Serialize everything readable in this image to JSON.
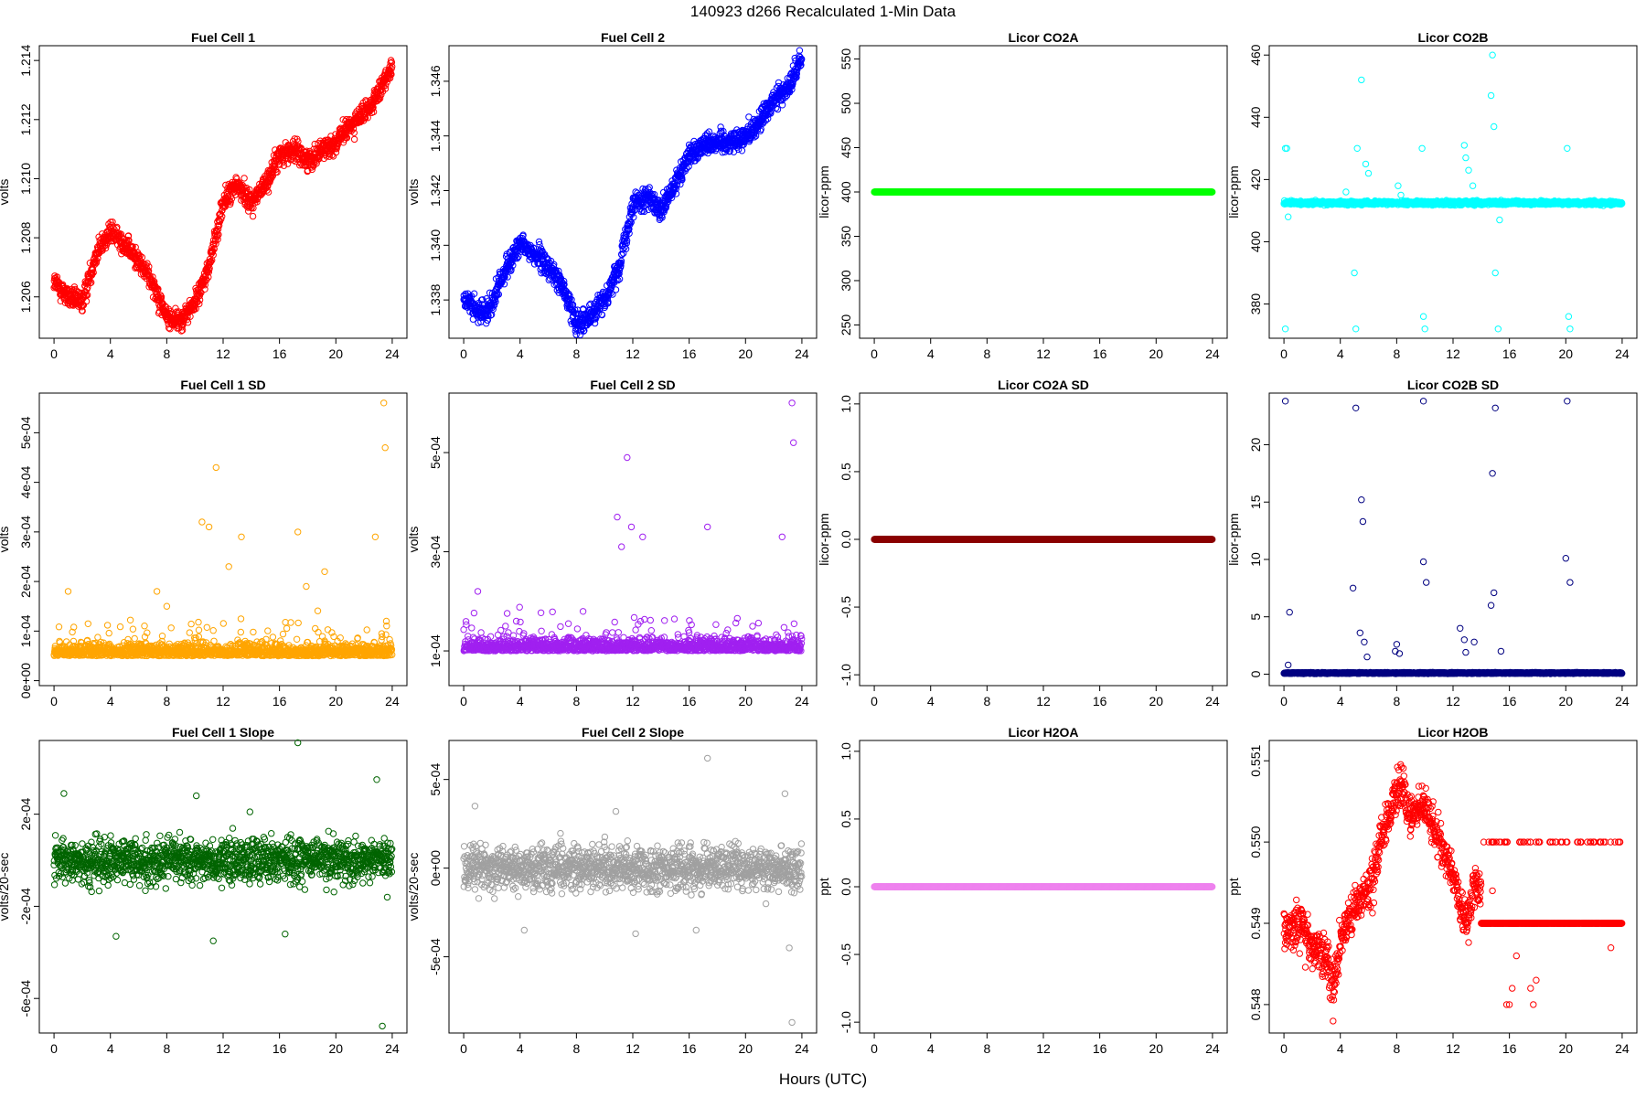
{
  "figure": {
    "suptitle": "140923   d266   Recalculated 1-Min Data",
    "xlabel": "Hours (UTC)"
  },
  "chart_data": [
    {
      "type": "scatter",
      "title": "Fuel Cell 1",
      "ylabel": "volts",
      "color": "#ff0000",
      "x_ticks": [
        "0",
        "4",
        "8",
        "12",
        "16",
        "20",
        "24"
      ],
      "xlim": [
        0,
        24
      ],
      "y_ticks": [
        "1.206",
        "1.208",
        "1.210",
        "1.212",
        "1.214"
      ],
      "ylim": [
        1.2046,
        1.2145
      ],
      "series": {
        "kind": "walk",
        "x": [
          0,
          1,
          2,
          3,
          4,
          5,
          6,
          7,
          8,
          9,
          10,
          11,
          12,
          13,
          14,
          15,
          16,
          17,
          18,
          19,
          20,
          21,
          22,
          23,
          24
        ],
        "y": [
          1.2065,
          1.206,
          1.2058,
          1.2075,
          1.2082,
          1.2078,
          1.2072,
          1.2065,
          1.2053,
          1.2052,
          1.2058,
          1.207,
          1.2092,
          1.2098,
          1.2092,
          1.2098,
          1.2108,
          1.211,
          1.2106,
          1.211,
          1.2112,
          1.2118,
          1.2122,
          1.2128,
          1.2139
        ],
        "noise": 0.00035
      }
    },
    {
      "type": "scatter",
      "title": "Fuel Cell 2",
      "ylabel": "volts",
      "color": "#0000ff",
      "x_ticks": [
        "0",
        "4",
        "8",
        "12",
        "16",
        "20",
        "24"
      ],
      "xlim": [
        0,
        24
      ],
      "y_ticks": [
        "1.338",
        "1.340",
        "1.342",
        "1.344",
        "1.346"
      ],
      "ylim": [
        1.3366,
        1.3473
      ],
      "series": {
        "kind": "walk",
        "x": [
          0,
          1,
          2,
          3,
          4,
          5,
          6,
          7,
          8,
          9,
          10,
          11,
          12,
          13,
          14,
          15,
          16,
          17,
          18,
          19,
          20,
          21,
          22,
          23,
          24
        ],
        "y": [
          1.3381,
          1.3375,
          1.3378,
          1.3392,
          1.34,
          1.3397,
          1.3392,
          1.3385,
          1.3372,
          1.3374,
          1.338,
          1.3392,
          1.3415,
          1.3418,
          1.3412,
          1.3422,
          1.3433,
          1.3437,
          1.3438,
          1.3438,
          1.344,
          1.3445,
          1.3453,
          1.3458,
          1.3468
        ],
        "noise": 0.0004
      }
    },
    {
      "type": "scatter",
      "title": "Licor CO2A",
      "ylabel": "licor-ppm",
      "color": "#00ff00",
      "x_ticks": [
        "0",
        "4",
        "8",
        "12",
        "16",
        "20",
        "24"
      ],
      "xlim": [
        0,
        24
      ],
      "y_ticks": [
        "250",
        "300",
        "350",
        "400",
        "450",
        "500",
        "550"
      ],
      "ylim": [
        235,
        565
      ],
      "series": {
        "kind": "const",
        "value": 400
      }
    },
    {
      "type": "scatter",
      "title": "Licor CO2B",
      "ylabel": "licor-ppm",
      "color": "#00ffff",
      "x_ticks": [
        "0",
        "4",
        "8",
        "12",
        "16",
        "20",
        "24"
      ],
      "xlim": [
        0,
        24
      ],
      "y_ticks": [
        "380",
        "400",
        "420",
        "440",
        "460"
      ],
      "ylim": [
        369,
        463
      ],
      "series": {
        "kind": "noisy",
        "base": 412.5,
        "noise": 0.6,
        "outliers": [
          [
            0.1,
            430
          ],
          [
            0.2,
            430
          ],
          [
            0.1,
            372
          ],
          [
            0.3,
            408
          ],
          [
            5.2,
            430
          ],
          [
            5.5,
            452
          ],
          [
            5.1,
            372
          ],
          [
            5.0,
            390
          ],
          [
            9.8,
            430
          ],
          [
            9.9,
            376
          ],
          [
            10.0,
            372
          ],
          [
            14.8,
            460
          ],
          [
            14.7,
            447
          ],
          [
            14.9,
            437
          ],
          [
            15.0,
            390
          ],
          [
            15.2,
            372
          ],
          [
            15.3,
            407
          ],
          [
            20.1,
            430
          ],
          [
            20.2,
            376
          ],
          [
            20.3,
            372
          ],
          [
            12.8,
            431
          ],
          [
            12.9,
            427
          ],
          [
            13.1,
            423
          ],
          [
            13.4,
            418
          ],
          [
            6.0,
            422
          ],
          [
            5.8,
            425
          ],
          [
            8.1,
            418
          ],
          [
            8.3,
            415
          ],
          [
            4.4,
            416
          ]
        ]
      }
    },
    {
      "type": "scatter",
      "title": "Fuel Cell 1 SD",
      "ylabel": "volts",
      "color": "#ffa500",
      "x_ticks": [
        "0",
        "4",
        "8",
        "12",
        "16",
        "20",
        "24"
      ],
      "xlim": [
        0,
        24
      ],
      "y_ticks": [
        "0e+00",
        "1e-04",
        "2e-04",
        "3e-04",
        "4e-04",
        "5e-04"
      ],
      "ylim": [
        -1e-05,
        0.00058
      ],
      "series": {
        "kind": "sd",
        "base": 5e-05,
        "noise": 3e-05,
        "outliers": [
          [
            11.5,
            0.00043
          ],
          [
            10.5,
            0.00032
          ],
          [
            11.0,
            0.00031
          ],
          [
            17.3,
            0.0003
          ],
          [
            13.3,
            0.00029
          ],
          [
            12.4,
            0.00023
          ],
          [
            22.8,
            0.00029
          ],
          [
            23.4,
            0.00056
          ],
          [
            23.5,
            0.00047
          ],
          [
            1.0,
            0.00018
          ],
          [
            7.3,
            0.00018
          ],
          [
            8.0,
            0.00015
          ],
          [
            19.2,
            0.00022
          ],
          [
            17.9,
            0.00019
          ]
        ]
      }
    },
    {
      "type": "scatter",
      "title": "Fuel Cell 2 SD",
      "ylabel": "volts",
      "color": "#a020f0",
      "x_ticks": [
        "0",
        "4",
        "8",
        "12",
        "16",
        "20",
        "24"
      ],
      "xlim": [
        0,
        24
      ],
      "y_ticks": [
        "1e-04",
        "3e-04",
        "5e-04"
      ],
      "ylim": [
        3e-05,
        0.00062
      ],
      "series": {
        "kind": "sd",
        "base": 0.0001,
        "noise": 3e-05,
        "outliers": [
          [
            11.6,
            0.00049
          ],
          [
            10.9,
            0.00037
          ],
          [
            11.9,
            0.00035
          ],
          [
            12.7,
            0.00033
          ],
          [
            17.3,
            0.00035
          ],
          [
            22.6,
            0.00033
          ],
          [
            23.3,
            0.0006
          ],
          [
            23.4,
            0.00052
          ],
          [
            11.2,
            0.00031
          ],
          [
            1.0,
            0.00022
          ]
        ]
      }
    },
    {
      "type": "scatter",
      "title": "Licor CO2A SD",
      "ylabel": "licor-ppm",
      "color": "#8b0000",
      "x_ticks": [
        "0",
        "4",
        "8",
        "12",
        "16",
        "20",
        "24"
      ],
      "xlim": [
        0,
        24
      ],
      "y_ticks": [
        "-1.0",
        "-0.5",
        "0.0",
        "0.5",
        "1.0"
      ],
      "ylim": [
        -1.08,
        1.08
      ],
      "series": {
        "kind": "const",
        "value": 0
      }
    },
    {
      "type": "scatter",
      "title": "Licor CO2B SD",
      "ylabel": "licor-ppm",
      "color": "#000080",
      "x_ticks": [
        "0",
        "4",
        "8",
        "12",
        "16",
        "20",
        "24"
      ],
      "xlim": [
        0,
        24
      ],
      "y_ticks": [
        "0",
        "5",
        "10",
        "15",
        "20"
      ],
      "ylim": [
        -1,
        24.5
      ],
      "series": {
        "kind": "noisy",
        "base": 0.1,
        "noise": 0.05,
        "outliers": [
          [
            0.1,
            23.8
          ],
          [
            0.4,
            5.4
          ],
          [
            5.1,
            23.2
          ],
          [
            5.5,
            15.2
          ],
          [
            5.6,
            13.3
          ],
          [
            4.9,
            7.5
          ],
          [
            9.9,
            23.8
          ],
          [
            9.9,
            9.8
          ],
          [
            10.1,
            8.0
          ],
          [
            14.8,
            17.5
          ],
          [
            14.9,
            7.1
          ],
          [
            15.0,
            23.2
          ],
          [
            14.7,
            6.0
          ],
          [
            20.1,
            23.8
          ],
          [
            20.0,
            10.1
          ],
          [
            20.3,
            8.0
          ],
          [
            12.5,
            4.0
          ],
          [
            5.4,
            3.6
          ],
          [
            8.0,
            2.6
          ],
          [
            13.5,
            2.8
          ],
          [
            15.4,
            2.0
          ],
          [
            5.7,
            2.8
          ],
          [
            12.8,
            3.0
          ],
          [
            0.3,
            0.8
          ],
          [
            7.9,
            2.0
          ],
          [
            5.9,
            1.5
          ],
          [
            8.2,
            1.8
          ],
          [
            12.9,
            1.9
          ]
        ]
      }
    },
    {
      "type": "scatter",
      "title": "Fuel Cell 1 Slope",
      "ylabel": "volts/20-sec",
      "color": "#006400",
      "x_ticks": [
        "0",
        "4",
        "8",
        "12",
        "16",
        "20",
        "24"
      ],
      "xlim": [
        0,
        24
      ],
      "y_ticks": [
        "-6e-04",
        "-2e-04",
        "2e-04"
      ],
      "ylim": [
        -0.00075,
        0.00052
      ],
      "series": {
        "kind": "noisy",
        "base": 0,
        "noise": 9e-05,
        "outliers": [
          [
            17.3,
            0.00051
          ],
          [
            23.3,
            -0.00072
          ],
          [
            22.9,
            0.00035
          ],
          [
            4.4,
            -0.00033
          ],
          [
            11.3,
            -0.00035
          ],
          [
            16.4,
            -0.00032
          ],
          [
            0.7,
            0.00029
          ],
          [
            10.1,
            0.00028
          ],
          [
            13.9,
            0.00021
          ]
        ]
      }
    },
    {
      "type": "scatter",
      "title": "Fuel Cell 2 Slope",
      "ylabel": "volts/20-sec",
      "color": "#a0a0a0",
      "x_ticks": [
        "0",
        "4",
        "8",
        "12",
        "16",
        "20",
        "24"
      ],
      "xlim": [
        0,
        24
      ],
      "y_ticks": [
        "-5e-04",
        "0e+00",
        "5e-04"
      ],
      "ylim": [
        -0.00093,
        0.00072
      ],
      "series": {
        "kind": "noisy",
        "base": 0,
        "noise": 0.00012,
        "outliers": [
          [
            17.3,
            0.00062
          ],
          [
            23.3,
            -0.00087
          ],
          [
            22.8,
            0.00042
          ],
          [
            23.1,
            -0.00045
          ],
          [
            4.3,
            -0.00035
          ],
          [
            12.2,
            -0.00037
          ],
          [
            10.8,
            0.00032
          ],
          [
            0.8,
            0.00035
          ],
          [
            16.5,
            -0.00035
          ]
        ]
      }
    },
    {
      "type": "scatter",
      "title": "Licor H2OA",
      "ylabel": "ppt",
      "color": "#ee82ee",
      "x_ticks": [
        "0",
        "4",
        "8",
        "12",
        "16",
        "20",
        "24"
      ],
      "xlim": [
        0,
        24
      ],
      "y_ticks": [
        "-1.0",
        "-0.5",
        "0.0",
        "0.5",
        "1.0"
      ],
      "ylim": [
        -1.08,
        1.08
      ],
      "series": {
        "kind": "const",
        "value": 0
      }
    },
    {
      "type": "scatter",
      "title": "Licor H2OB",
      "ylabel": "ppt",
      "color": "#ff0000",
      "x_ticks": [
        "0",
        "4",
        "8",
        "12",
        "16",
        "20",
        "24"
      ],
      "xlim": [
        0,
        24
      ],
      "y_ticks": [
        "0.548",
        "0.549",
        "0.550",
        "0.551"
      ],
      "ylim": [
        0.54765,
        0.55125
      ],
      "series": {
        "kind": "walk",
        "x": [
          0,
          1,
          2,
          3,
          3.5,
          4,
          5,
          6,
          7,
          8,
          8.3,
          9,
          10,
          11,
          12,
          12.5,
          13,
          13.5,
          14
        ],
        "y": [
          0.5489,
          0.549,
          0.5487,
          0.5486,
          0.5482,
          0.5488,
          0.5492,
          0.5494,
          0.5501,
          0.5506,
          0.5507,
          0.5503,
          0.5505,
          0.55,
          0.5496,
          0.5492,
          0.549,
          0.5495,
          0.5494
        ],
        "noise": 0.00025,
        "steps": {
          "from": 14,
          "to": 24,
          "levels": [
            0.549,
            0.55
          ],
          "main": 0.549
        },
        "outliers": [
          [
            15.8,
            0.548
          ],
          [
            16.0,
            0.548
          ],
          [
            16.2,
            0.5482
          ],
          [
            17.5,
            0.5482
          ],
          [
            17.7,
            0.548
          ],
          [
            17.9,
            0.5483
          ],
          [
            23.2,
            0.5487
          ],
          [
            14.8,
            0.5494
          ],
          [
            16.5,
            0.5486
          ]
        ]
      }
    }
  ]
}
